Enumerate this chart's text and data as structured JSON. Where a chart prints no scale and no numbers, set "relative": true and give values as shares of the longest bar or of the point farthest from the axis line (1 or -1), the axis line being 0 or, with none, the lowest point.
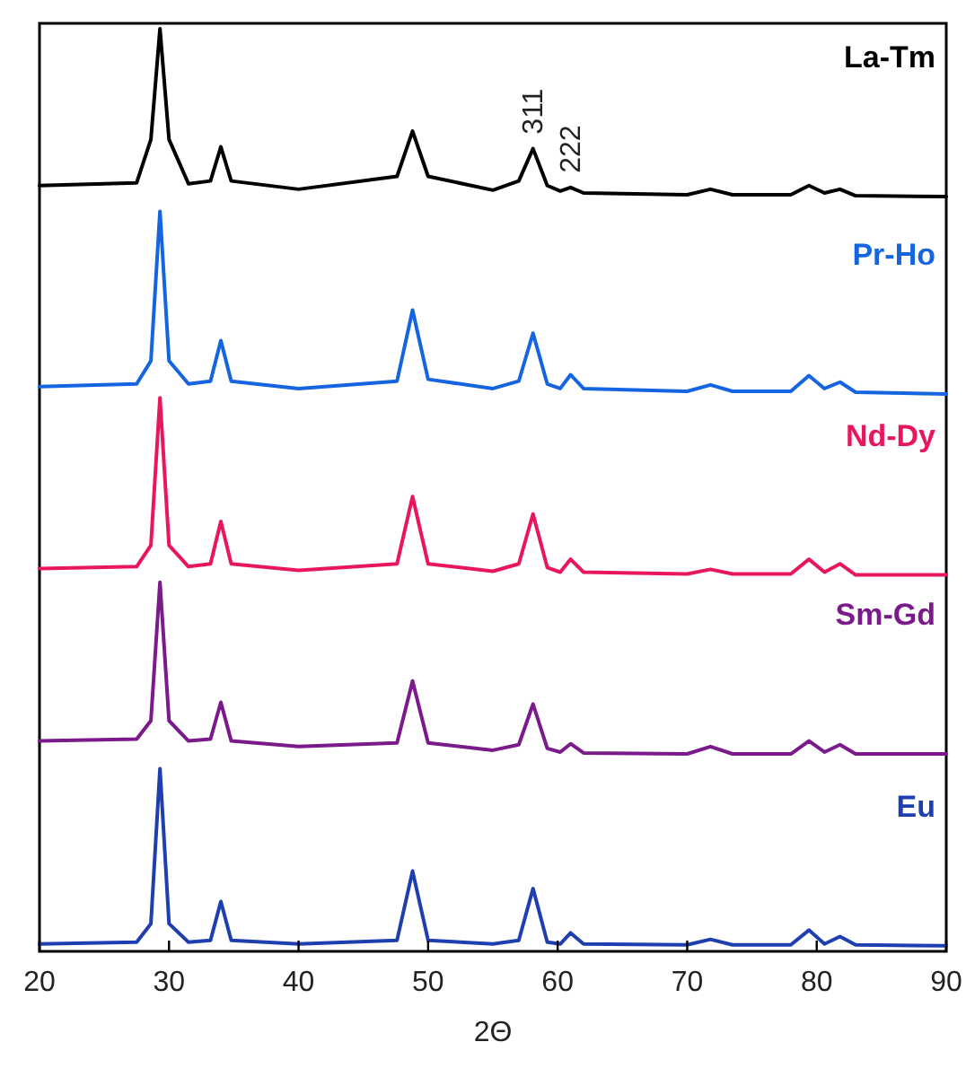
{
  "chart_data": {
    "type": "line",
    "relative": true,
    "xlabel": "2Θ",
    "xlim": [
      20,
      90
    ],
    "xticks": [
      20,
      30,
      40,
      50,
      60,
      70,
      80,
      90
    ],
    "tick_labels": "x",
    "marker": "none",
    "line_style": "solid",
    "x": [
      20,
      27.5,
      28.6,
      29.3,
      30.0,
      31.5,
      33.2,
      34.0,
      34.8,
      40,
      47.6,
      48.8,
      50.0,
      55,
      57.0,
      58.1,
      59.2,
      60.2,
      61.0,
      62.0,
      70,
      71.8,
      73.5,
      78,
      79.4,
      80.6,
      81.8,
      83,
      90
    ],
    "series": [
      {
        "name": "La-Tm",
        "color": "#000000",
        "values": [
          0.83,
          0.833,
          0.88,
          1.0,
          0.88,
          0.832,
          0.835,
          0.872,
          0.835,
          0.826,
          0.84,
          0.889,
          0.84,
          0.825,
          0.835,
          0.87,
          0.83,
          0.824,
          0.828,
          0.822,
          0.82,
          0.826,
          0.82,
          0.82,
          0.83,
          0.822,
          0.826,
          0.819,
          0.818
        ]
      },
      {
        "name": "Pr-Ho",
        "color": "#1565e0",
        "values": [
          0.612,
          0.615,
          0.64,
          0.802,
          0.64,
          0.615,
          0.618,
          0.662,
          0.618,
          0.61,
          0.618,
          0.695,
          0.62,
          0.61,
          0.618,
          0.67,
          0.615,
          0.61,
          0.625,
          0.61,
          0.607,
          0.614,
          0.607,
          0.607,
          0.624,
          0.61,
          0.617,
          0.606,
          0.604
        ]
      },
      {
        "name": "Nd-Dy",
        "color": "#e8175d",
        "values": [
          0.415,
          0.417,
          0.44,
          0.6,
          0.44,
          0.417,
          0.42,
          0.466,
          0.42,
          0.413,
          0.42,
          0.493,
          0.42,
          0.412,
          0.42,
          0.474,
          0.416,
          0.411,
          0.425,
          0.411,
          0.409,
          0.414,
          0.409,
          0.409,
          0.425,
          0.411,
          0.42,
          0.408,
          0.408
        ]
      },
      {
        "name": "Sm-Gd",
        "color": "#7b1a8a",
        "values": [
          0.228,
          0.23,
          0.25,
          0.4,
          0.25,
          0.228,
          0.23,
          0.27,
          0.228,
          0.222,
          0.226,
          0.293,
          0.226,
          0.218,
          0.224,
          0.268,
          0.22,
          0.216,
          0.225,
          0.215,
          0.214,
          0.222,
          0.214,
          0.214,
          0.228,
          0.216,
          0.224,
          0.214,
          0.214
        ]
      },
      {
        "name": "Eu",
        "color": "#1f3fb0",
        "values": [
          0.008,
          0.01,
          0.03,
          0.198,
          0.03,
          0.01,
          0.012,
          0.054,
          0.012,
          0.008,
          0.012,
          0.087,
          0.012,
          0.008,
          0.012,
          0.068,
          0.01,
          0.008,
          0.02,
          0.008,
          0.007,
          0.013,
          0.007,
          0.007,
          0.023,
          0.008,
          0.016,
          0.007,
          0.006
        ]
      }
    ],
    "annotations": [
      {
        "text": "311",
        "x": 58.1,
        "y": 0.87
      },
      {
        "text": "222",
        "x": 61.0,
        "y": 0.828
      }
    ]
  }
}
